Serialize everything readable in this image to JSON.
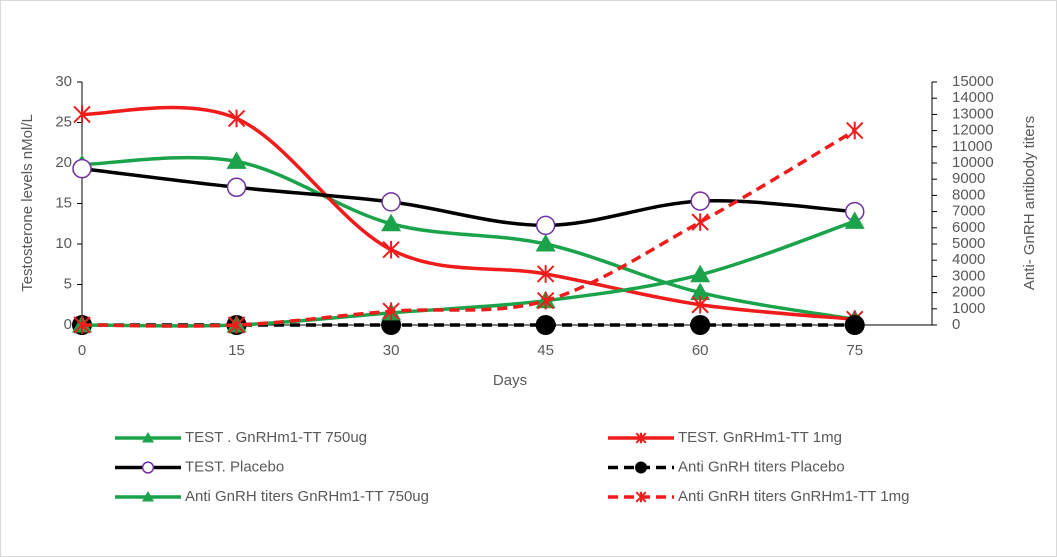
{
  "chart_data": {
    "type": "line",
    "x_label": "Days",
    "y_label": "Testosterone levels nMol/L",
    "y2_label": "Anti- GnRH antibody titers",
    "x": [
      0,
      15,
      30,
      45,
      60,
      75
    ],
    "xlim": [
      0,
      82.5
    ],
    "xticks": [
      0,
      15,
      30,
      45,
      60,
      75
    ],
    "ylim": [
      0,
      30
    ],
    "yticks": [
      0,
      5,
      10,
      15,
      20,
      25,
      30
    ],
    "y2lim": [
      0,
      15000
    ],
    "y2ticks": [
      0,
      1000,
      2000,
      3000,
      4000,
      5000,
      6000,
      7000,
      8000,
      9000,
      10000,
      11000,
      12000,
      13000,
      14000,
      15000
    ],
    "series": [
      {
        "name": "TEST . GnRHm1-TT 750ug",
        "color": "#1aa34a",
        "marker": "triangle",
        "dashed": false,
        "values": [
          19.8,
          20.2,
          12.5,
          10,
          4,
          0.7
        ]
      },
      {
        "name": "TEST. GnRHm1-TT 1mg",
        "color": "#f01b1b",
        "marker": "star",
        "dashed": false,
        "values": [
          26,
          25.5,
          9.3,
          6.3,
          2.5,
          0.7
        ]
      },
      {
        "name": "TEST. Placebo",
        "color": "#000000",
        "marker": "open-circle",
        "dashed": false,
        "values": [
          19.3,
          17,
          15.2,
          12.3,
          15.3,
          14
        ]
      },
      {
        "name": "Anti GnRH titers Placebo",
        "color": "#000000",
        "marker": "circle",
        "dashed": true,
        "axis": "y2",
        "values": [
          0,
          0,
          0,
          0,
          0,
          0
        ]
      },
      {
        "name": "Anti GnRH titers GnRHm1-TT 750ug",
        "color": "#1aa34a",
        "marker": "triangle",
        "dashed": false,
        "axis": "y2",
        "values": [
          0,
          0,
          750,
          1500,
          3100,
          6400
        ]
      },
      {
        "name": "Anti GnRH titers GnRHm1-TT 1mg",
        "color": "#f01b1b",
        "marker": "star",
        "dashed": true,
        "axis": "y2",
        "values": [
          0,
          0,
          850,
          1500,
          6350,
          12000
        ]
      }
    ]
  }
}
